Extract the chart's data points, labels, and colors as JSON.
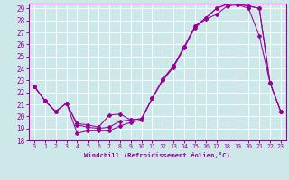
{
  "bg_color": "#cce8e8",
  "line_color": "#990099",
  "grid_color": "#ffffff",
  "xlim": [
    -0.5,
    23.5
  ],
  "ylim": [
    18,
    29.4
  ],
  "yticks": [
    18,
    19,
    20,
    21,
    22,
    23,
    24,
    25,
    26,
    27,
    28,
    29
  ],
  "xticks": [
    0,
    1,
    2,
    3,
    4,
    5,
    6,
    7,
    8,
    9,
    10,
    11,
    12,
    13,
    14,
    15,
    16,
    17,
    18,
    19,
    20,
    21,
    22,
    23
  ],
  "xlabel": "Windchill (Refroidissement éolien,°C)",
  "line1_y": [
    22.5,
    21.3,
    20.4,
    21.1,
    18.6,
    18.8,
    18.8,
    18.8,
    19.2,
    19.5,
    19.7,
    21.5,
    23.0,
    24.1,
    25.7,
    27.4,
    28.1,
    28.5,
    29.2,
    29.3,
    29.0,
    26.7,
    22.8,
    20.4
  ],
  "line2_y": [
    22.5,
    21.3,
    20.4,
    21.1,
    19.3,
    19.1,
    19.0,
    19.1,
    19.6,
    19.7,
    19.8,
    21.5,
    23.1,
    24.2,
    25.8,
    27.5,
    28.2,
    29.0,
    29.35,
    29.35,
    29.2,
    29.0,
    22.8,
    20.4
  ],
  "line3_y": [
    22.5,
    21.3,
    20.4,
    21.1,
    19.4,
    19.3,
    19.1,
    20.1,
    20.2,
    19.7,
    19.8,
    21.5,
    23.1,
    24.2,
    25.8,
    27.5,
    28.2,
    29.0,
    29.35,
    29.35,
    29.2,
    29.0,
    22.8,
    20.4
  ]
}
